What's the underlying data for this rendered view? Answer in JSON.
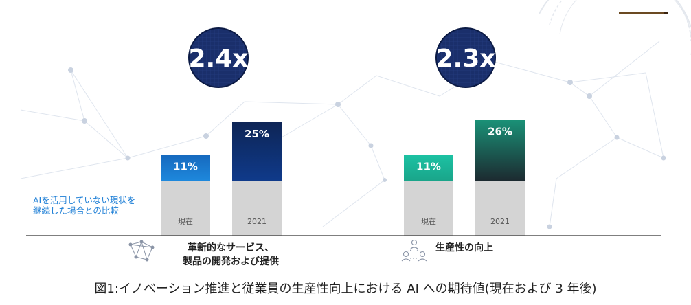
{
  "chart_data": {
    "type": "bar",
    "groups": [
      {
        "category": "革新的なサービス、製品の開発および提供",
        "category_lines": [
          "革新的なサービス、",
          "製品の開発および提供"
        ],
        "multiplier": "2.4x",
        "x": [
          "現在",
          "2021"
        ],
        "values": [
          11,
          25
        ],
        "value_labels": [
          "11%",
          "25%"
        ]
      },
      {
        "category": "生産性の向上",
        "category_lines": [
          "生産性の向上"
        ],
        "multiplier": "2.3x",
        "x": [
          "現在",
          "2021"
        ],
        "values": [
          11,
          26
        ],
        "value_labels": [
          "11%",
          "26%"
        ]
      }
    ],
    "baseline_note_lines": [
      "AIを活用していない現状を",
      "継続した場合との比較"
    ],
    "colors": {
      "group1_current": "#1a75c8",
      "group1_2021": "#0f2a66",
      "group2_current": "#1fb89a",
      "group2_2021": "#1d3d3a",
      "base": "#d4d4d4",
      "badge": "#1a2f6b"
    }
  },
  "caption": "図1:イノベーション推進と従業員の生産性向上における AI への期待値(現在および 3 年後)"
}
